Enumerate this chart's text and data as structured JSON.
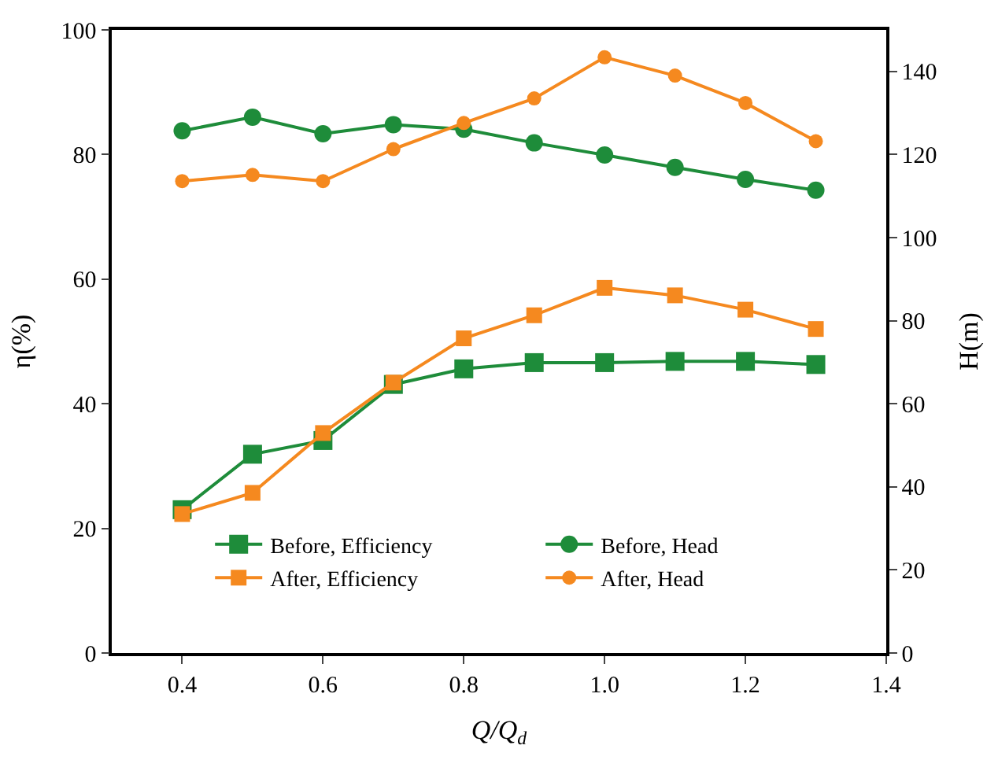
{
  "chart_data": {
    "type": "line",
    "xlabel": "Q/Q$_{d}$",
    "ylabel": "η(%)",
    "y2label": "H(m)",
    "x": [
      0.4,
      0.5,
      0.6,
      0.7,
      0.8,
      0.9,
      1.0,
      1.1,
      1.2,
      1.3
    ],
    "xlim": [
      0.3,
      1.4
    ],
    "xticks": [
      0.4,
      0.6,
      0.8,
      {
        "value": 1.0,
        "label": "1.0"
      },
      1.2,
      1.4
    ],
    "ylim": [
      0,
      100
    ],
    "yticks": [
      0,
      20,
      40,
      60,
      80,
      100
    ],
    "y2lim": [
      0,
      150
    ],
    "y2ticks": [
      0,
      20,
      40,
      60,
      80,
      100,
      120,
      140
    ],
    "legend": "bottom",
    "line_style": "solid",
    "series": [
      {
        "name": "Before, Efficiency",
        "color": "#1e8c3a",
        "marker": "square",
        "values": [
          23.0,
          31.9,
          34.1,
          43.1,
          45.6,
          46.6,
          46.6,
          46.8,
          46.8,
          46.3
        ]
      },
      {
        "name": "Before, Head",
        "color": "#1e8c3a",
        "marker": "circle",
        "axis": "y2",
        "values": [
          125.7,
          129,
          125,
          127.2,
          126.1,
          122.8,
          119.9,
          116.9,
          114,
          111.4
        ]
      },
      {
        "name": "After, Efficiency",
        "color": "#f5891f",
        "marker": "square",
        "values": [
          22.3,
          25.7,
          35.3,
          43.4,
          50.5,
          54.2,
          58.6,
          57.4,
          55.1,
          52.0
        ]
      },
      {
        "name": "After, Head",
        "color": "#f5891f",
        "marker": "circle",
        "axis": "y2",
        "values": [
          113.6,
          115.1,
          113.6,
          121.3,
          127.6,
          133.5,
          143.4,
          139,
          132.4,
          123.2
        ]
      }
    ]
  }
}
